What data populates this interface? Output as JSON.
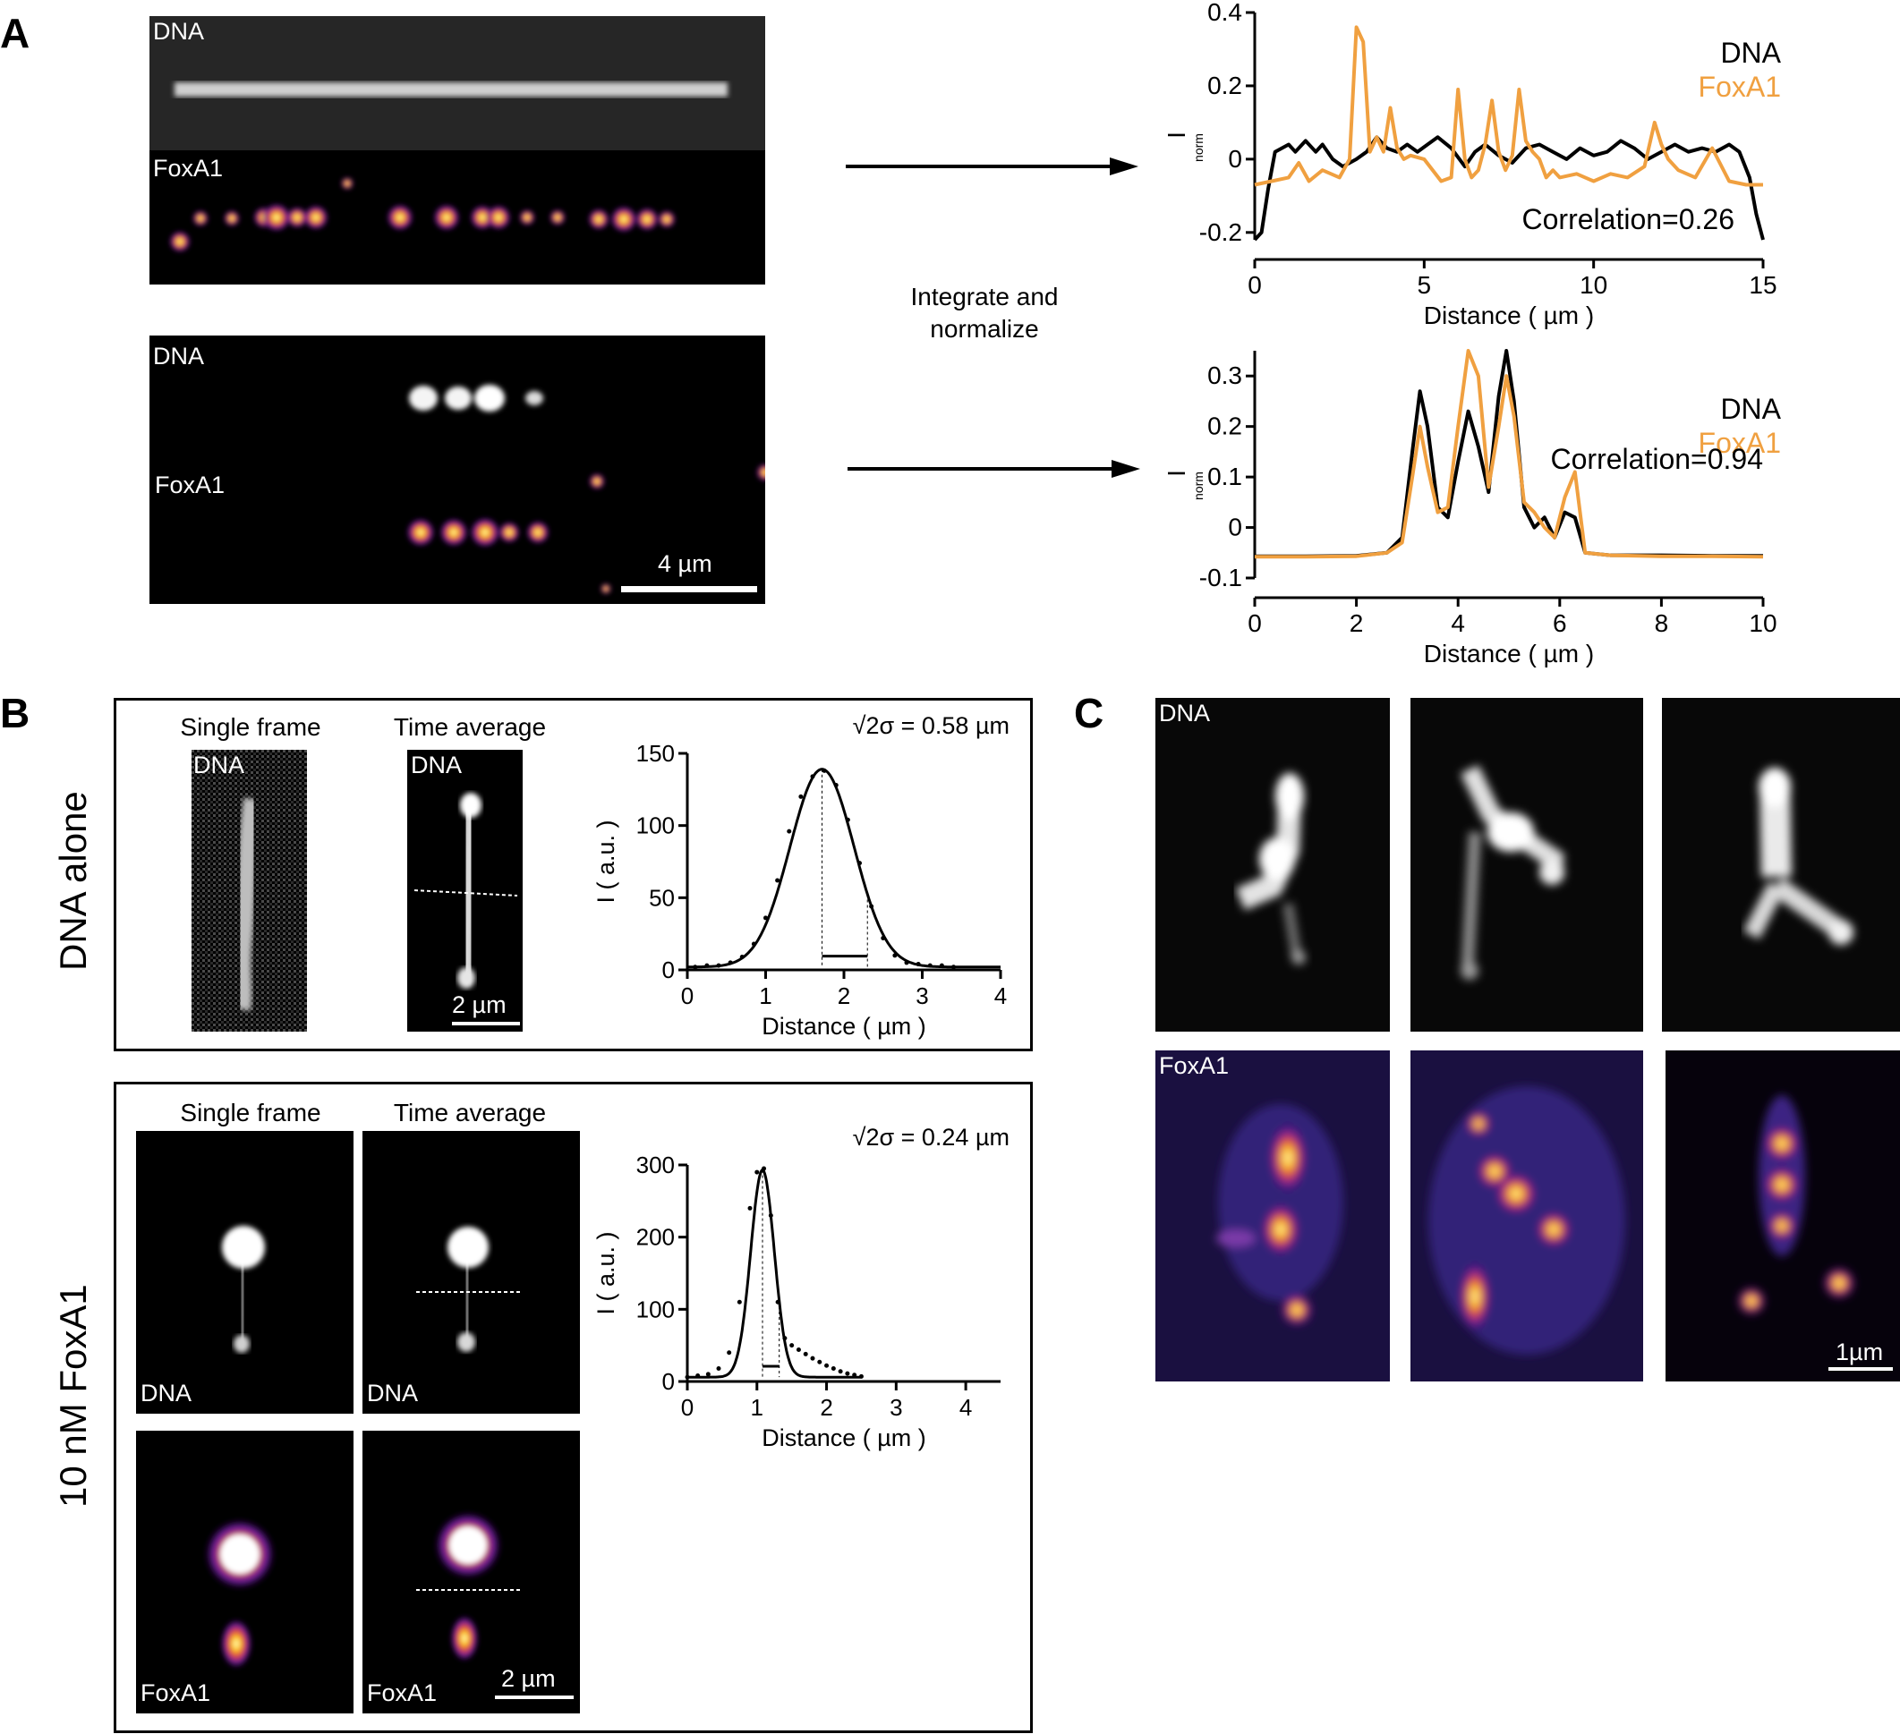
{
  "panel_letters": {
    "a": "A",
    "b": "B",
    "c": "C"
  },
  "panel_a": {
    "top": {
      "dna_label": "DNA",
      "foxa1_label": "FoxA1"
    },
    "bottom": {
      "dna_label": "DNA",
      "foxa1_label": "FoxA1",
      "scale": "4 µm"
    },
    "middle_text_line1": "Integrate and",
    "middle_text_line2": "normalize"
  },
  "panel_b": {
    "row1": {
      "side_label": "DNA alone",
      "single_frame": "Single frame",
      "time_average": "Time average",
      "img_label_1": "DNA",
      "img_label_2": "DNA",
      "scale": "2 µm",
      "sigma_text": "√2σ = 0.58 µm"
    },
    "row2": {
      "side_label": "10 nM FoxA1",
      "single_frame": "Single frame",
      "time_average": "Time average",
      "dna_label_1": "DNA",
      "dna_label_2": "DNA",
      "foxa1_label_1": "FoxA1",
      "foxa1_label_2": "FoxA1",
      "scale": "2 µm",
      "sigma_text": "√2σ = 0.24 µm"
    }
  },
  "panel_c": {
    "dna_label": "DNA",
    "foxa1_label": "FoxA1",
    "scale": "1µm"
  },
  "colors": {
    "dna_line": "#000000",
    "foxa1_line": "#f0a040",
    "background": "#ffffff"
  },
  "chart_data": [
    {
      "id": "a_top",
      "type": "line",
      "xlabel": "Distance ( µm )",
      "ylabel": "I",
      "ylabel_sub": "norm",
      "xlim": [
        0,
        15
      ],
      "ylim": [
        -0.22,
        0.4
      ],
      "xticks": [
        0,
        5,
        10,
        15
      ],
      "yticks": [
        -0.2,
        0,
        0.2,
        0.4
      ],
      "xtick_labels": [
        "0",
        "5",
        "10",
        "15"
      ],
      "ytick_labels": [
        "-0.2",
        "0",
        "0.2",
        "0.4"
      ],
      "legend": [
        "DNA",
        "FoxA1"
      ],
      "annotation": "Correlation=0.26",
      "series": [
        {
          "name": "DNA",
          "color": "#000000",
          "x": [
            0,
            0.2,
            0.4,
            0.6,
            0.8,
            1.0,
            1.2,
            1.5,
            1.8,
            2.0,
            2.3,
            2.6,
            3.0,
            3.3,
            3.6,
            3.9,
            4.2,
            4.5,
            4.8,
            5.1,
            5.4,
            5.8,
            6.2,
            6.5,
            6.8,
            7.2,
            7.6,
            8.0,
            8.4,
            8.8,
            9.2,
            9.6,
            10.0,
            10.4,
            10.8,
            11.2,
            11.6,
            12.0,
            12.4,
            12.8,
            13.2,
            13.6,
            14.0,
            14.3,
            14.6,
            14.8,
            15.0
          ],
          "y": [
            -0.22,
            -0.2,
            -0.08,
            0.02,
            0.03,
            0.04,
            0.02,
            0.05,
            0.02,
            0.04,
            0.0,
            -0.02,
            0.0,
            0.02,
            0.06,
            0.03,
            0.02,
            0.04,
            0.02,
            0.04,
            0.06,
            0.03,
            -0.02,
            0.02,
            0.04,
            0.01,
            -0.01,
            0.03,
            0.04,
            0.02,
            0.0,
            0.03,
            0.01,
            0.02,
            0.05,
            0.03,
            0.0,
            0.02,
            0.04,
            0.02,
            0.03,
            0.02,
            0.04,
            0.02,
            -0.05,
            -0.15,
            -0.22
          ]
        },
        {
          "name": "FoxA1",
          "color": "#f0a040",
          "x": [
            0,
            0.5,
            1.0,
            1.3,
            1.6,
            2.0,
            2.5,
            2.8,
            3.0,
            3.2,
            3.4,
            3.6,
            3.8,
            4.0,
            4.2,
            4.4,
            4.6,
            5.0,
            5.5,
            5.8,
            6.0,
            6.2,
            6.4,
            6.6,
            6.8,
            7.0,
            7.2,
            7.4,
            7.6,
            7.8,
            8.0,
            8.2,
            8.4,
            8.6,
            8.8,
            9.0,
            9.5,
            10.0,
            10.5,
            11.0,
            11.5,
            11.8,
            12.0,
            12.2,
            12.5,
            13.0,
            13.5,
            14.0,
            14.5,
            15.0
          ],
          "y": [
            -0.07,
            -0.06,
            -0.05,
            -0.01,
            -0.06,
            -0.03,
            -0.05,
            0.0,
            0.36,
            0.32,
            0.02,
            0.06,
            0.02,
            0.14,
            0.03,
            0.0,
            0.01,
            0.0,
            -0.06,
            -0.05,
            0.19,
            0.0,
            -0.05,
            -0.03,
            0.04,
            0.16,
            0.02,
            -0.03,
            0.01,
            0.19,
            0.05,
            0.02,
            0.0,
            -0.05,
            -0.03,
            -0.05,
            -0.04,
            -0.06,
            -0.04,
            -0.05,
            -0.02,
            0.1,
            0.04,
            0.0,
            -0.03,
            -0.05,
            0.03,
            -0.06,
            -0.07,
            -0.07
          ]
        }
      ]
    },
    {
      "id": "a_bottom",
      "type": "line",
      "xlabel": "Distance ( µm )",
      "ylabel": "I",
      "ylabel_sub": "norm",
      "xlim": [
        0,
        10
      ],
      "ylim": [
        -0.1,
        0.35
      ],
      "xticks": [
        0,
        2,
        4,
        6,
        8,
        10
      ],
      "yticks": [
        -0.1,
        0,
        0.1,
        0.2,
        0.3
      ],
      "xtick_labels": [
        "0",
        "2",
        "4",
        "6",
        "8",
        "10"
      ],
      "ytick_labels": [
        "-0.1",
        "0",
        "0.1",
        "0.2",
        "0.3"
      ],
      "legend": [
        "DNA",
        "FoxA1"
      ],
      "annotation": "Correlation=0.94",
      "series": [
        {
          "name": "DNA",
          "color": "#000000",
          "x": [
            0,
            1,
            2,
            2.6,
            2.9,
            3.1,
            3.25,
            3.4,
            3.6,
            3.8,
            4.0,
            4.2,
            4.4,
            4.6,
            4.8,
            4.95,
            5.1,
            5.3,
            5.5,
            5.7,
            5.9,
            6.1,
            6.3,
            6.5,
            7,
            8,
            9,
            10
          ],
          "y": [
            -0.057,
            -0.057,
            -0.056,
            -0.05,
            -0.02,
            0.15,
            0.27,
            0.2,
            0.04,
            0.02,
            0.13,
            0.23,
            0.16,
            0.07,
            0.26,
            0.39,
            0.25,
            0.04,
            0.0,
            0.02,
            -0.02,
            0.03,
            0.02,
            -0.05,
            -0.055,
            -0.055,
            -0.056,
            -0.056
          ]
        },
        {
          "name": "FoxA1",
          "color": "#f0a040",
          "x": [
            0,
            1,
            2,
            2.6,
            2.9,
            3.1,
            3.25,
            3.4,
            3.6,
            3.8,
            4.0,
            4.2,
            4.4,
            4.6,
            4.8,
            4.95,
            5.1,
            5.3,
            5.5,
            5.7,
            5.9,
            6.1,
            6.3,
            6.5,
            7,
            8,
            9,
            10
          ],
          "y": [
            -0.058,
            -0.058,
            -0.057,
            -0.05,
            -0.03,
            0.1,
            0.2,
            0.12,
            0.03,
            0.04,
            0.2,
            0.38,
            0.3,
            0.08,
            0.2,
            0.3,
            0.22,
            0.05,
            0.03,
            0.0,
            -0.02,
            0.06,
            0.11,
            -0.05,
            -0.055,
            -0.057,
            -0.057,
            -0.058
          ]
        }
      ]
    },
    {
      "id": "b_top",
      "type": "line",
      "xlabel": "Distance ( µm )",
      "ylabel": "I ( a.u. )",
      "xlim": [
        0,
        4
      ],
      "ylim": [
        0,
        150
      ],
      "xticks": [
        0,
        1,
        2,
        3,
        4
      ],
      "yticks": [
        0,
        50,
        100,
        150
      ],
      "xtick_labels": [
        "0",
        "1",
        "2",
        "3",
        "4"
      ],
      "ytick_labels": [
        "0",
        "50",
        "100",
        "150"
      ],
      "annotation": "√2σ = 0.58 µm",
      "fit": {
        "amplitude": 137,
        "center": 1.72,
        "sigma": 0.41,
        "offset": 2
      },
      "dots": {
        "x": [
          0.1,
          0.25,
          0.4,
          0.55,
          0.7,
          0.85,
          1.0,
          1.15,
          1.3,
          1.45,
          1.6,
          1.75,
          1.9,
          2.05,
          2.2,
          2.35,
          2.5,
          2.65,
          2.8,
          2.95,
          3.1,
          3.25,
          3.4
        ],
        "y": [
          2,
          3,
          3,
          5,
          9,
          18,
          36,
          62,
          96,
          120,
          134,
          138,
          128,
          104,
          74,
          44,
          22,
          10,
          5,
          4,
          3,
          3,
          2
        ]
      }
    },
    {
      "id": "b_bottom",
      "type": "line",
      "xlabel": "Distance ( µm )",
      "ylabel": "I ( a.u. )",
      "xlim": [
        0,
        4.5
      ],
      "ylim": [
        0,
        300
      ],
      "xticks": [
        0,
        1,
        2,
        3,
        4
      ],
      "yticks": [
        0,
        100,
        200,
        300
      ],
      "xtick_labels": [
        "0",
        "1",
        "2",
        "3",
        "4"
      ],
      "ytick_labels": [
        "0",
        "100",
        "200",
        "300"
      ],
      "annotation": "√2σ = 0.24 µm",
      "fit": {
        "amplitude": 287,
        "center": 1.08,
        "sigma": 0.17,
        "offset": 6
      },
      "dots": {
        "x": [
          0.0,
          0.15,
          0.3,
          0.45,
          0.6,
          0.75,
          0.9,
          1.0,
          1.1,
          1.2,
          1.3,
          1.4,
          1.5,
          1.6,
          1.7,
          1.8,
          1.9,
          2.0,
          2.1,
          2.2,
          2.3,
          2.4,
          2.5
        ],
        "y": [
          6,
          8,
          10,
          18,
          40,
          110,
          240,
          290,
          295,
          230,
          110,
          60,
          50,
          44,
          38,
          32,
          27,
          22,
          18,
          14,
          11,
          9,
          7
        ]
      }
    }
  ]
}
